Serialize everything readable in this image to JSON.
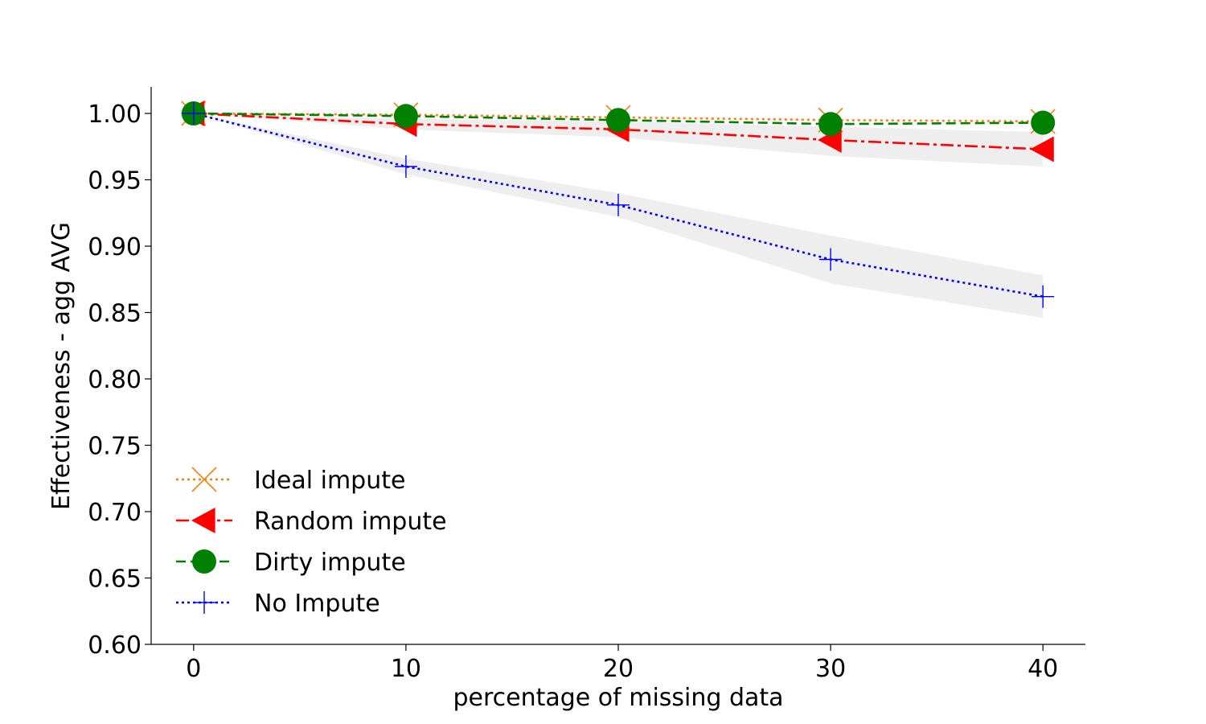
{
  "chart_data": {
    "type": "line",
    "title": "",
    "xlabel": "percentage of missing data",
    "ylabel": "Effectiveness - agg AVG",
    "x": [
      0,
      10,
      20,
      30,
      40
    ],
    "xlim": [
      -2,
      42
    ],
    "ylim": [
      0.6,
      1.02
    ],
    "xticks": [
      "0",
      "10",
      "20",
      "30",
      "40"
    ],
    "yticks": [
      "0.60",
      "0.65",
      "0.70",
      "0.75",
      "0.80",
      "0.85",
      "0.90",
      "0.95",
      "1.00"
    ],
    "grid": false,
    "legend_position": "lower-left",
    "series": [
      {
        "name": "Ideal impute",
        "values": [
          1.0,
          0.999,
          0.997,
          0.995,
          0.994
        ],
        "band": null,
        "color": "#ff7f0e",
        "line_style": "dotted",
        "marker": "x"
      },
      {
        "name": "Random impute",
        "values": [
          1.0,
          0.992,
          0.988,
          0.98,
          0.973
        ],
        "band": {
          "lower": [
            1.0,
            0.988,
            0.982,
            0.968,
            0.96
          ],
          "upper": [
            1.0,
            0.996,
            0.994,
            0.99,
            0.986
          ]
        },
        "color": "#ff0000",
        "line_style": "dashdot",
        "marker": "triangle-left"
      },
      {
        "name": "Dirty impute",
        "values": [
          1.0,
          0.998,
          0.995,
          0.992,
          0.993
        ],
        "band": null,
        "color": "#008000",
        "line_style": "dashed",
        "marker": "circle"
      },
      {
        "name": "No Impute",
        "values": [
          1.0,
          0.96,
          0.931,
          0.89,
          0.862
        ],
        "band": {
          "lower": [
            1.0,
            0.954,
            0.922,
            0.872,
            0.846
          ],
          "upper": [
            1.0,
            0.966,
            0.94,
            0.908,
            0.878
          ]
        },
        "color": "#0000ff",
        "line_style": "dotted",
        "marker": "plus"
      }
    ]
  }
}
